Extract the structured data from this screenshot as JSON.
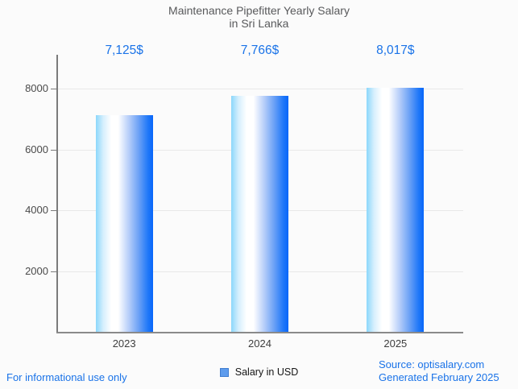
{
  "chart_data": {
    "type": "bar",
    "title": "Maintenance Pipefitter Yearly Salary in Sri Lanka",
    "title_lines": [
      "Maintenance Pipefitter Yearly Salary",
      "in Sri Lanka"
    ],
    "categories": [
      "2023",
      "2024",
      "2025"
    ],
    "series": [
      {
        "name": "Salary in USD",
        "values": [
          7125,
          7766,
          8017
        ],
        "value_labels": [
          "7,125$",
          "7,766$",
          "8,017$"
        ]
      }
    ],
    "xlabel": "",
    "ylabel": "",
    "y_ticks": [
      2000,
      4000,
      6000,
      8000
    ],
    "ylim": [
      0,
      9100
    ],
    "grid": true,
    "legend_position": "bottom"
  },
  "legend": {
    "label": "Salary in USD"
  },
  "footer": {
    "left": "For informational use only",
    "source": "Source: optisalary.com",
    "generated": "Generated February 2025"
  },
  "colors": {
    "accent_blue": "#1a73e8",
    "bar_gradient_left": "#8bd7fb",
    "bar_gradient_mid": "#ffffff",
    "bar_gradient_right": "#0766fa",
    "legend_marker_fill": "#5e9ced",
    "legend_marker_border": "#3f7dd0",
    "title_text": "#58595b",
    "tick_text": "#4a4a4a",
    "axis_line": "#7b7b7b",
    "gridline": "#e8e8e8",
    "background": "#fbfbfb"
  }
}
